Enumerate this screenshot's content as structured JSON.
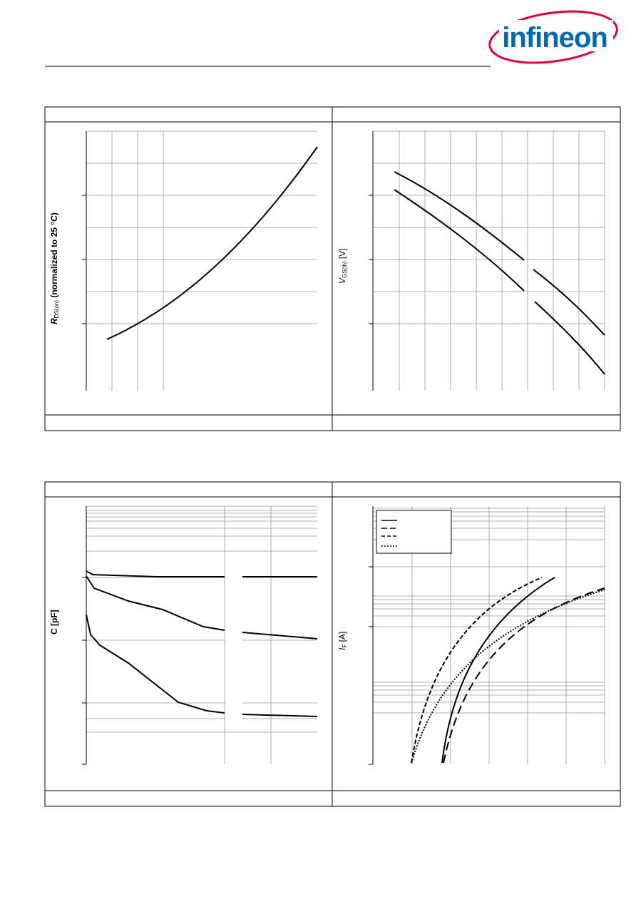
{
  "header": {
    "logo": "infineon"
  },
  "panels": [
    {
      "y_label": {
        "symbol": "R",
        "subscript": "DS(on)",
        "rest": "(normalized to 25 °C)"
      }
    },
    {
      "y_label": {
        "symbol": "V",
        "subscript": "GS(th)",
        "rest": "[V]"
      }
    },
    {
      "y_label": {
        "symbol": "C",
        "subscript": "",
        "rest": "[pF]"
      }
    },
    {
      "y_label": {
        "symbol": "I",
        "subscript": "F",
        "rest": "[A]"
      }
    }
  ]
}
